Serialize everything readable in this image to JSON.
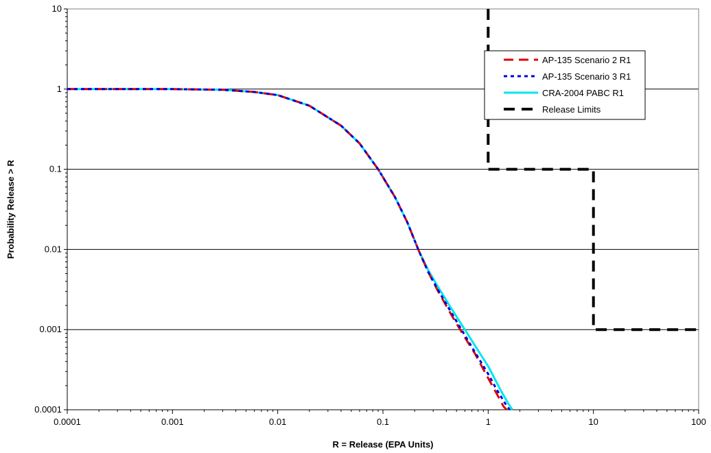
{
  "chart_data": {
    "type": "line",
    "title": "",
    "xlabel": "R = Release (EPA Units)",
    "ylabel": "Probability Release > R",
    "x_scale": "log",
    "y_scale": "log",
    "xlim": [
      0.0001,
      100
    ],
    "ylim": [
      0.0001,
      10
    ],
    "x_ticks": [
      "0.0001",
      "0.001",
      "0.01",
      "0.1",
      "1",
      "10",
      "100"
    ],
    "y_ticks": [
      "0.0001",
      "0.001",
      "0.01",
      "0.1",
      "1",
      "10"
    ],
    "grid": "horizontal major",
    "legend_position": "top-right",
    "series": [
      {
        "name": "AP-135 Scenario 2 R1",
        "color": "#e00000",
        "style": "long-dash",
        "x": [
          0.0001,
          0.001,
          0.003,
          0.006,
          0.01,
          0.02,
          0.04,
          0.06,
          0.09,
          0.13,
          0.17,
          0.22,
          0.27,
          0.33,
          0.45,
          0.6,
          0.75,
          0.95,
          1.2,
          1.4,
          1.5
        ],
        "y": [
          1.0,
          1.0,
          0.98,
          0.92,
          0.84,
          0.62,
          0.35,
          0.21,
          0.1,
          0.045,
          0.022,
          0.0095,
          0.0052,
          0.0031,
          0.0015,
          0.0008,
          0.0005,
          0.00028,
          0.00016,
          0.00011,
          0.0001
        ]
      },
      {
        "name": "AP-135 Scenario 3 R1",
        "color": "#0000dd",
        "style": "short-dash",
        "x": [
          0.0001,
          0.001,
          0.003,
          0.006,
          0.01,
          0.02,
          0.04,
          0.06,
          0.09,
          0.13,
          0.17,
          0.22,
          0.27,
          0.33,
          0.45,
          0.6,
          0.75,
          1.0,
          1.2,
          1.45,
          1.6
        ],
        "y": [
          1.0,
          1.0,
          0.98,
          0.92,
          0.84,
          0.62,
          0.35,
          0.21,
          0.1,
          0.045,
          0.022,
          0.0095,
          0.0052,
          0.0032,
          0.0016,
          0.00085,
          0.00052,
          0.00028,
          0.00018,
          0.00012,
          0.0001
        ]
      },
      {
        "name": "CRA-2004 PABC R1",
        "color": "#00e5ee",
        "style": "solid",
        "x": [
          0.0001,
          0.001,
          0.003,
          0.006,
          0.01,
          0.02,
          0.04,
          0.06,
          0.09,
          0.13,
          0.17,
          0.22,
          0.27,
          0.33,
          0.45,
          0.6,
          0.8,
          1.0,
          1.3,
          1.55,
          1.7
        ],
        "y": [
          1.0,
          1.0,
          0.98,
          0.92,
          0.84,
          0.62,
          0.35,
          0.21,
          0.1,
          0.045,
          0.022,
          0.0095,
          0.0055,
          0.0035,
          0.0018,
          0.001,
          0.00055,
          0.00035,
          0.00018,
          0.00012,
          0.0001
        ]
      },
      {
        "name": "Release Limits",
        "color": "#000000",
        "style": "dash-thick",
        "x": [
          1,
          1,
          10,
          10,
          100
        ],
        "y": [
          10,
          0.1,
          0.1,
          0.001,
          0.001
        ]
      }
    ]
  }
}
